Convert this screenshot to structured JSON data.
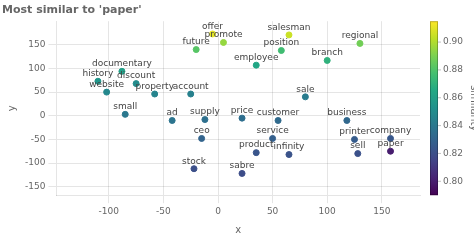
{
  "chart_data": {
    "type": "scatter",
    "title": "Most similar to 'paper'",
    "xlabel": "x",
    "ylabel": "y",
    "points": [
      {
        "label": "offer",
        "x": -5,
        "y": 173,
        "similarity": 0.91
      },
      {
        "label": "salesman",
        "x": 65,
        "y": 171,
        "similarity": 0.905
      },
      {
        "label": "promote",
        "x": 5,
        "y": 155,
        "similarity": 0.895
      },
      {
        "label": "regional",
        "x": 130,
        "y": 153,
        "similarity": 0.888
      },
      {
        "label": "future",
        "x": -20,
        "y": 140,
        "similarity": 0.882
      },
      {
        "label": "position",
        "x": 58,
        "y": 138,
        "similarity": 0.876
      },
      {
        "label": "branch",
        "x": 100,
        "y": 117,
        "similarity": 0.87
      },
      {
        "label": "employee",
        "x": 35,
        "y": 107,
        "similarity": 0.864
      },
      {
        "label": "documentary",
        "x": -88,
        "y": 94,
        "similarity": 0.86
      },
      {
        "label": "history",
        "x": -110,
        "y": 73,
        "similarity": 0.855
      },
      {
        "label": "discount",
        "x": -75,
        "y": 68,
        "similarity": 0.85
      },
      {
        "label": "website",
        "x": -102,
        "y": 50,
        "similarity": 0.848
      },
      {
        "label": "property",
        "x": -58,
        "y": 46,
        "similarity": 0.846
      },
      {
        "label": "account",
        "x": -25,
        "y": 46,
        "similarity": 0.844
      },
      {
        "label": "sale",
        "x": 80,
        "y": 40,
        "similarity": 0.842
      },
      {
        "label": "small",
        "x": -85,
        "y": 3,
        "similarity": 0.84
      },
      {
        "label": "ad",
        "x": -42,
        "y": -10,
        "similarity": 0.838
      },
      {
        "label": "supply",
        "x": -12,
        "y": -8,
        "similarity": 0.836
      },
      {
        "label": "price",
        "x": 22,
        "y": -5,
        "similarity": 0.835
      },
      {
        "label": "customer",
        "x": 55,
        "y": -10,
        "similarity": 0.833
      },
      {
        "label": "business",
        "x": 118,
        "y": -10,
        "similarity": 0.832
      },
      {
        "label": "ceo",
        "x": -15,
        "y": -48,
        "similarity": 0.83
      },
      {
        "label": "service",
        "x": 50,
        "y": -48,
        "similarity": 0.828
      },
      {
        "label": "printer",
        "x": 125,
        "y": -50,
        "similarity": 0.826
      },
      {
        "label": "company",
        "x": 158,
        "y": -48,
        "similarity": 0.824
      },
      {
        "label": "product",
        "x": 35,
        "y": -78,
        "similarity": 0.823
      },
      {
        "label": "infinity",
        "x": 65,
        "y": -82,
        "similarity": 0.822
      },
      {
        "label": "sell",
        "x": 128,
        "y": -80,
        "similarity": 0.821
      },
      {
        "label": "paper",
        "x": 158,
        "y": -75,
        "similarity": 0.8
      },
      {
        "label": "stock",
        "x": -22,
        "y": -112,
        "similarity": 0.82
      },
      {
        "label": "sabre",
        "x": 22,
        "y": -122,
        "similarity": 0.819
      }
    ],
    "xlim": [
      -148,
      185
    ],
    "ylim": [
      -168,
      200
    ],
    "xticks": [
      -100,
      -50,
      0,
      50,
      100,
      150
    ],
    "yticks": [
      -150,
      -100,
      -50,
      0,
      50,
      100,
      150
    ],
    "grid": true,
    "colorbar": {
      "label": "similarity",
      "range": [
        0.79,
        0.915
      ],
      "ticks": [
        {
          "value": 0.8,
          "label": "0.80"
        },
        0.82,
        0.84,
        0.86,
        0.88,
        {
          "value": 0.9,
          "label": "0.90"
        }
      ]
    }
  }
}
